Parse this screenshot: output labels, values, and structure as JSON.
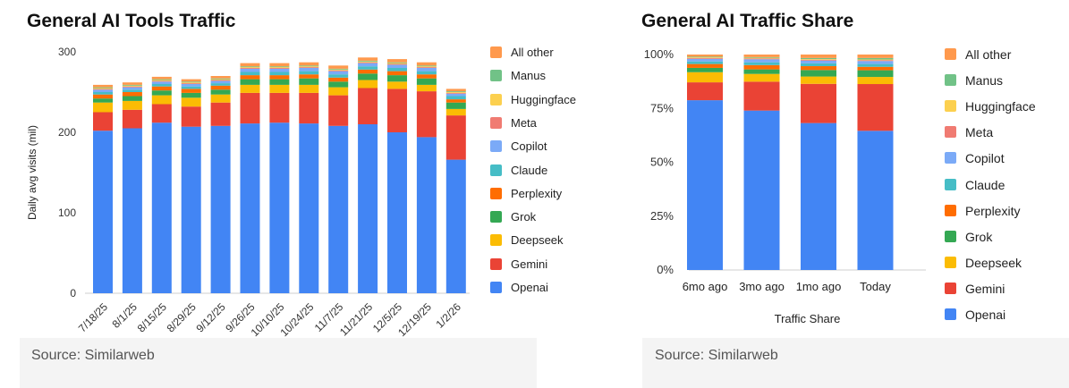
{
  "series_colors": {
    "Openai": "#4285f4",
    "Gemini": "#ea4335",
    "Deepseek": "#fbbc04",
    "Grok": "#34a853",
    "Perplexity": "#ff6d01",
    "Claude": "#46bdc6",
    "Copilot": "#7baaf7",
    "Meta": "#f07b72",
    "Huggingface": "#fcd04f",
    "Manus": "#71c287",
    "All other": "#ff994d"
  },
  "chart_data": [
    {
      "type": "bar",
      "stacked": true,
      "title": "General AI Tools Traffic",
      "source": "Source: Similarweb",
      "xlabel": "",
      "ylabel": "Daily avg visits (mil)",
      "ylim": [
        0,
        300
      ],
      "yticks": [
        "0",
        "100",
        "200",
        "300"
      ],
      "categories": [
        "7/18/25",
        "8/1/25",
        "8/15/25",
        "8/29/25",
        "9/12/25",
        "9/26/25",
        "10/10/25",
        "10/24/25",
        "11/7/25",
        "11/21/25",
        "12/5/25",
        "12/19/25",
        "1/2/26"
      ],
      "legend_position": "right",
      "legend_order": [
        "All other",
        "Manus",
        "Huggingface",
        "Meta",
        "Copilot",
        "Claude",
        "Perplexity",
        "Grok",
        "Deepseek",
        "Gemini",
        "Openai"
      ],
      "series": [
        {
          "name": "Openai",
          "values": [
            202,
            205,
            212,
            207,
            208,
            211,
            212,
            211,
            208,
            210,
            200,
            194,
            166
          ]
        },
        {
          "name": "Gemini",
          "values": [
            23,
            23,
            23,
            25,
            29,
            38,
            37,
            38,
            38,
            45,
            54,
            57,
            55
          ]
        },
        {
          "name": "Deepseek",
          "values": [
            12,
            11,
            11,
            11,
            10,
            10,
            10,
            10,
            10,
            10,
            9,
            8,
            8
          ]
        },
        {
          "name": "Grok",
          "values": [
            5,
            6,
            6,
            6,
            6,
            7,
            7,
            8,
            7,
            8,
            8,
            8,
            8
          ]
        },
        {
          "name": "Perplexity",
          "values": [
            5,
            5,
            5,
            5,
            5,
            5,
            5,
            5,
            5,
            5,
            5,
            5,
            4
          ]
        },
        {
          "name": "Claude",
          "values": [
            3,
            3,
            3,
            3,
            3,
            4,
            4,
            4,
            4,
            4,
            4,
            4,
            4
          ]
        },
        {
          "name": "Copilot",
          "values": [
            3,
            3,
            3,
            3,
            3,
            4,
            4,
            4,
            4,
            4,
            4,
            4,
            3
          ]
        },
        {
          "name": "Meta",
          "values": [
            1,
            1,
            1,
            1,
            1,
            1,
            1,
            1,
            1,
            1,
            1,
            1,
            1
          ]
        },
        {
          "name": "Huggingface",
          "values": [
            1,
            1,
            1,
            1,
            1,
            1,
            1,
            1,
            1,
            1,
            1,
            1,
            1
          ]
        },
        {
          "name": "Manus",
          "values": [
            1,
            1,
            1,
            1,
            1,
            1,
            1,
            1,
            1,
            1,
            1,
            1,
            1
          ]
        },
        {
          "name": "All other",
          "values": [
            3,
            3,
            3,
            3,
            3,
            4,
            4,
            4,
            4,
            4,
            4,
            4,
            3
          ]
        }
      ]
    },
    {
      "type": "bar",
      "stacked": true,
      "title": "General AI Traffic Share",
      "source": "Source: Similarweb",
      "xlabel": "Traffic Share",
      "ylabel": "",
      "ylim": [
        0,
        100
      ],
      "yticks": [
        "0%",
        "25%",
        "50%",
        "75%",
        "100%"
      ],
      "categories": [
        "6mo ago",
        "3mo ago",
        "1mo ago",
        "Today"
      ],
      "legend_position": "right",
      "legend_order": [
        "All other",
        "Manus",
        "Huggingface",
        "Meta",
        "Copilot",
        "Claude",
        "Perplexity",
        "Grok",
        "Deepseek",
        "Gemini",
        "Openai"
      ],
      "series": [
        {
          "name": "Openai",
          "values": [
            78.8,
            74.0,
            68.2,
            64.6
          ]
        },
        {
          "name": "Gemini",
          "values": [
            8.3,
            13.4,
            18.2,
            21.7
          ]
        },
        {
          "name": "Deepseek",
          "values": [
            4.7,
            3.6,
            3.4,
            3.3
          ]
        },
        {
          "name": "Grok",
          "values": [
            2.0,
            2.1,
            3.0,
            3.1
          ]
        },
        {
          "name": "Perplexity",
          "values": [
            1.8,
            2.0,
            1.8,
            1.6
          ]
        },
        {
          "name": "Claude",
          "values": [
            1.2,
            1.3,
            1.3,
            1.3
          ]
        },
        {
          "name": "Copilot",
          "values": [
            1.2,
            1.4,
            1.3,
            1.4
          ]
        },
        {
          "name": "Meta",
          "values": [
            0.4,
            0.4,
            0.4,
            0.4
          ]
        },
        {
          "name": "Huggingface",
          "values": [
            0.3,
            0.3,
            0.3,
            0.3
          ]
        },
        {
          "name": "Manus",
          "values": [
            0.3,
            0.3,
            0.5,
            0.7
          ]
        },
        {
          "name": "All other",
          "values": [
            1.0,
            1.2,
            1.6,
            1.6
          ]
        }
      ]
    }
  ]
}
